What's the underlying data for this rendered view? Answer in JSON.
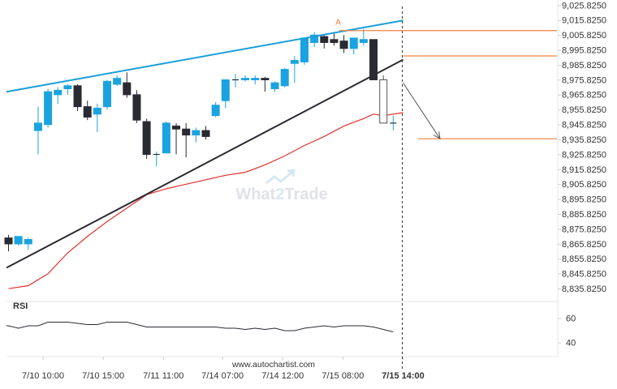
{
  "chart_data": {
    "type": "candlestick",
    "y_axis": {
      "range": [
        8828.5,
        9029.5
      ],
      "ticks": [
        9025.825,
        9015.825,
        9005.825,
        8995.825,
        8985.825,
        8975.825,
        8965.825,
        8955.825,
        8945.825,
        8935.825,
        8925.825,
        8915.825,
        8905.825,
        8895.825,
        8885.825,
        8875.825,
        8865.825,
        8855.825,
        8845.825,
        8835.825
      ],
      "tick_labels": [
        "9,025.8250",
        "9,015.8250",
        "9,005.8250",
        "8,995.8250",
        "8,985.8250",
        "8,975.8250",
        "8,965.8250",
        "8,955.8250",
        "8,945.8250",
        "8,935.8250",
        "8,925.8250",
        "8,915.8250",
        "8,905.8250",
        "8,895.8250",
        "8,885.8250",
        "8,875.8250",
        "8,865.8250",
        "8,855.8250",
        "8,845.8250",
        "8,835.8250"
      ]
    },
    "x_axis": {
      "tick_labels": [
        "7/10 10:00",
        "7/10 15:00",
        "7/11 11:00",
        "7/14 07:00",
        "7/14 12:00",
        "7/15 08:00",
        "7/15 14:00"
      ],
      "tick_bar_index": [
        3.5,
        9.6,
        15.7,
        21.7,
        27.8,
        33.9,
        40
      ]
    },
    "candles": [
      {
        "o": 8870,
        "h": 8872,
        "l": 8861,
        "c": 8866
      },
      {
        "o": 8866,
        "h": 8871,
        "l": 8865,
        "c": 8871
      },
      {
        "o": 8866,
        "h": 8870,
        "l": 8862,
        "c": 8869
      },
      {
        "o": 8942,
        "h": 8958,
        "l": 8926,
        "c": 8947
      },
      {
        "o": 8946,
        "h": 8970,
        "l": 8944,
        "c": 8968
      },
      {
        "o": 8966,
        "h": 8971,
        "l": 8960,
        "c": 8969
      },
      {
        "o": 8970,
        "h": 8973,
        "l": 8966,
        "c": 8972
      },
      {
        "o": 8972,
        "h": 8973,
        "l": 8955,
        "c": 8958
      },
      {
        "o": 8958,
        "h": 8962,
        "l": 8949,
        "c": 8951
      },
      {
        "o": 8953,
        "h": 8960,
        "l": 8941,
        "c": 8957
      },
      {
        "o": 8958,
        "h": 8976,
        "l": 8956,
        "c": 8975
      },
      {
        "o": 8973,
        "h": 8979,
        "l": 8972,
        "c": 8977
      },
      {
        "o": 8974,
        "h": 8981,
        "l": 8964,
        "c": 8966
      },
      {
        "o": 8966,
        "h": 8969,
        "l": 8947,
        "c": 8949
      },
      {
        "o": 8948,
        "h": 8950,
        "l": 8923,
        "c": 8926
      },
      {
        "o": 8926,
        "h": 8928,
        "l": 8918,
        "c": 8926
      },
      {
        "o": 8927,
        "h": 8948,
        "l": 8927,
        "c": 8947
      },
      {
        "o": 8945,
        "h": 8947,
        "l": 8926,
        "c": 8943
      },
      {
        "o": 8943,
        "h": 8947,
        "l": 8924,
        "c": 8939
      },
      {
        "o": 8939,
        "h": 8944,
        "l": 8934,
        "c": 8942
      },
      {
        "o": 8942,
        "h": 8945,
        "l": 8936,
        "c": 8938
      },
      {
        "o": 8952,
        "h": 8961,
        "l": 8951,
        "c": 8959
      },
      {
        "o": 8962,
        "h": 8976,
        "l": 8957,
        "c": 8976
      },
      {
        "o": 8976,
        "h": 8980,
        "l": 8971,
        "c": 8976
      },
      {
        "o": 8976,
        "h": 8979,
        "l": 8975,
        "c": 8977
      },
      {
        "o": 8976,
        "h": 8979,
        "l": 8973,
        "c": 8977
      },
      {
        "o": 8977,
        "h": 8978,
        "l": 8968,
        "c": 8976
      },
      {
        "o": 8970,
        "h": 8975,
        "l": 8968,
        "c": 8974
      },
      {
        "o": 8972,
        "h": 8984,
        "l": 8971,
        "c": 8983
      },
      {
        "o": 8987,
        "h": 8992,
        "l": 8974,
        "c": 8989
      },
      {
        "o": 8988,
        "h": 9003,
        "l": 8986,
        "c": 9004
      },
      {
        "o": 9001,
        "h": 9008,
        "l": 8998,
        "c": 9006
      },
      {
        "o": 9005,
        "h": 9006,
        "l": 8997,
        "c": 9001
      },
      {
        "o": 9003,
        "h": 9008,
        "l": 8999,
        "c": 9001
      },
      {
        "o": 9002,
        "h": 9006,
        "l": 8994,
        "c": 8997
      },
      {
        "o": 8997,
        "h": 9004,
        "l": 8993,
        "c": 9004
      },
      {
        "o": 9001,
        "h": 9010,
        "l": 8999,
        "c": 9003
      },
      {
        "o": 9003,
        "h": 9003,
        "l": 8976,
        "c": 8976
      },
      {
        "o": 8976,
        "h": 8979,
        "l": 8947,
        "c": 8947
      },
      {
        "o": 8947,
        "h": 8952,
        "l": 8942,
        "c": 8947
      }
    ],
    "candle_gap_before_index": [
      3,
      21
    ],
    "projected_candle_index": [
      38
    ],
    "moving_average": [
      [
        0,
        8836
      ],
      [
        2,
        8838
      ],
      [
        4,
        8846
      ],
      [
        6,
        8860
      ],
      [
        8,
        8871
      ],
      [
        10,
        8881
      ],
      [
        12,
        8890
      ],
      [
        14,
        8899
      ],
      [
        16,
        8903
      ],
      [
        18,
        8906
      ],
      [
        20,
        8909
      ],
      [
        22,
        8912
      ],
      [
        24,
        8914
      ],
      [
        26,
        8919
      ],
      [
        28,
        8925
      ],
      [
        30,
        8932
      ],
      [
        32,
        8938
      ],
      [
        34,
        8945
      ],
      [
        36,
        8950
      ],
      [
        37,
        8953
      ],
      [
        38,
        8952
      ],
      [
        40,
        8954
      ]
    ],
    "upper_trendline": [
      [
        0,
        8968
      ],
      [
        40,
        9015.8
      ]
    ],
    "lower_trendline": [
      [
        0,
        8850
      ],
      [
        40,
        8989.5
      ]
    ],
    "levels": [
      {
        "value": 9009,
        "from": 33.5,
        "to": 44
      },
      {
        "value": 8992,
        "from": 40,
        "to": 44
      },
      {
        "value": 8936.5,
        "from": 41.5,
        "to": 44
      }
    ],
    "forecast_arrow": {
      "from": [
        40,
        8974
      ],
      "to": [
        43,
        8936.5
      ]
    },
    "pattern_marker": {
      "label": "A",
      "index": 33.5,
      "value": 9011.3
    },
    "rsi": {
      "label": "RSI",
      "range": [
        30,
        70
      ],
      "ticks": [
        60,
        40
      ],
      "tick_labels": [
        "60",
        "40"
      ],
      "values": [
        54,
        52,
        54,
        54,
        57,
        57,
        57,
        56,
        55,
        55,
        57,
        57,
        57,
        55,
        53,
        53,
        53,
        53,
        53,
        53,
        53,
        53,
        52,
        52,
        51,
        52,
        51,
        52,
        50,
        50,
        52,
        53,
        54,
        53,
        54,
        54,
        54,
        53,
        51,
        49
      ]
    },
    "current_bar_index": 40
  },
  "watermark": {
    "text_left": "What",
    "digit": "2",
    "text_right": "Trade"
  },
  "source": "www.autochartist.com"
}
